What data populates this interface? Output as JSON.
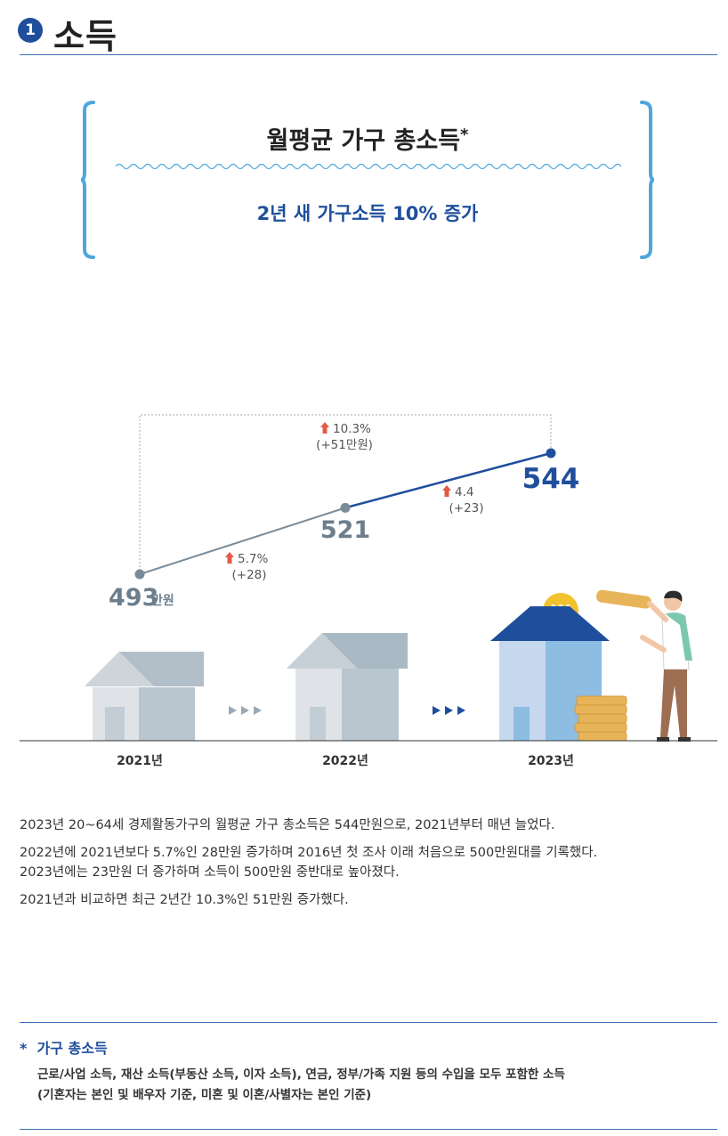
{
  "section": {
    "number": "1",
    "title": "소득"
  },
  "callout": {
    "title": "월평균 가구 총소득",
    "title_mark": "*",
    "subtitle": "2년 새 가구소득 10% 증가"
  },
  "colors": {
    "accent_blue": "#1f4f9c",
    "gray_line": "#7a8b98",
    "bracket_blue": "#4fa6dc",
    "up_arrow_red": "#e35a45"
  },
  "chart_data": {
    "type": "line",
    "x": [
      "2021년",
      "2022년",
      "2023년"
    ],
    "values": [
      493,
      521,
      544
    ],
    "value_labels": [
      "493",
      "521",
      "544"
    ],
    "unit": "만원",
    "changes": [
      {
        "from": "2021년",
        "to": "2022년",
        "pct": "5.7%",
        "diff": "(+28)"
      },
      {
        "from": "2022년",
        "to": "2023년",
        "pct": "4.4",
        "diff": "(+23)"
      },
      {
        "from": "2021년",
        "to": "2023년",
        "pct": "10.3%",
        "diff": "(+51만원)"
      }
    ],
    "icons": [
      "house-icon",
      "won-coin-icon",
      "coin-stack-icon",
      "person-icon",
      "arrow-up-icon"
    ]
  },
  "description": [
    "2023년 20~64세 경제활동가구의 월평균 가구 총소득은 544만원으로, 2021년부터 매년 늘었다.",
    "2022년에 2021년보다 5.7%인 28만원 증가하며 2016년 첫 조사 이래 처음으로 500만원대를 기록했다.",
    "2023년에는 23만원 더 증가하며 소득이 500만원 중반대로 높아졌다.",
    "2021년과 비교하면 최근 2년간 10.3%인 51만원 증가했다."
  ],
  "note": {
    "mark": "*",
    "title": "가구 총소득",
    "lines": [
      "근로/사업 소득, 재산 소득(부동산 소득, 이자 소득), 연금, 정부/가족 지원 등의 수입을 모두 포함한 소득",
      "(기혼자는 본인 및 배우자 기준, 미혼 및 이혼/사별자는 본인 기준)"
    ]
  }
}
